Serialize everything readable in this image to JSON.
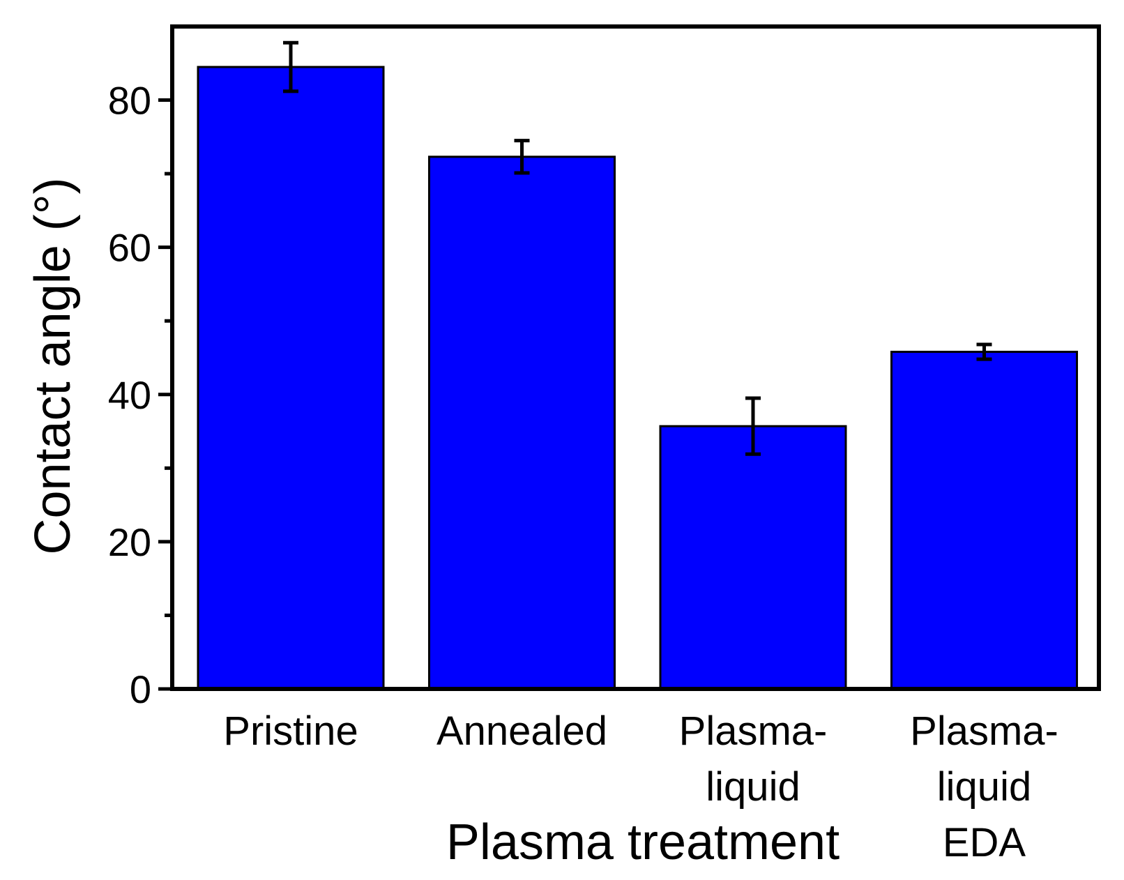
{
  "chart_data": {
    "type": "bar",
    "title": "",
    "categories": [
      [
        "Pristine"
      ],
      [
        "Annealed"
      ],
      [
        "Plasma-",
        "liquid"
      ],
      [
        "Plasma-",
        "liquid",
        "EDA"
      ]
    ],
    "values": [
      84.5,
      72.3,
      35.7,
      45.8
    ],
    "errors": [
      3.3,
      2.2,
      3.8,
      1.0
    ],
    "xlabel": "Plasma treatment",
    "ylabel": "Contact angle (°)",
    "ylim": [
      0,
      90
    ],
    "yticks": [
      0,
      20,
      40,
      60,
      80
    ],
    "yticks_minor": [
      10,
      30,
      50,
      70
    ],
    "colors": {
      "bar": "#0000ff",
      "bar_edge": "#000000",
      "axis": "#000000",
      "error_bar": "#000000"
    }
  }
}
